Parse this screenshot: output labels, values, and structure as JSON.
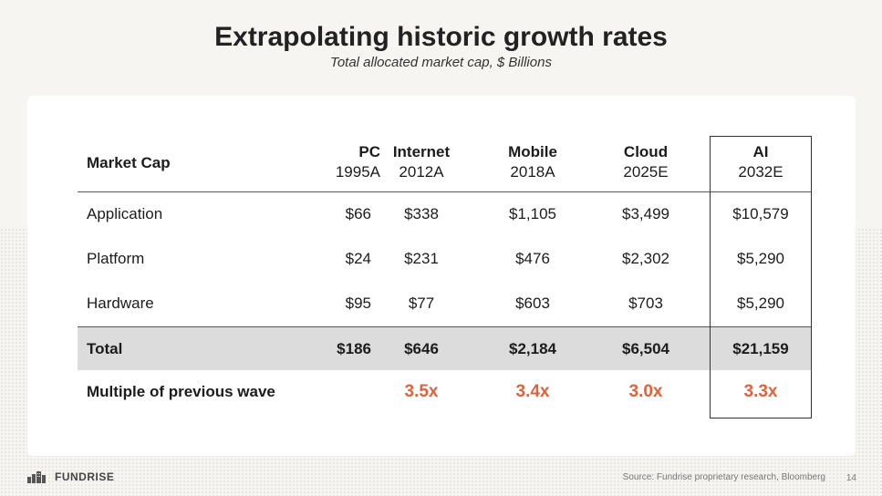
{
  "title": "Extrapolating historic growth rates",
  "subtitle": "Total allocated market cap, $ Billions",
  "table": {
    "header_label": "Market Cap",
    "columns": [
      {
        "name": "PC",
        "year": "1995A"
      },
      {
        "name": "Internet",
        "year": "2012A"
      },
      {
        "name": "Mobile",
        "year": "2018A"
      },
      {
        "name": "Cloud",
        "year": "2025E"
      },
      {
        "name": "AI",
        "year": "2032E"
      }
    ],
    "rows": [
      {
        "label": "Application",
        "values": [
          "$66",
          "$338",
          "$1,105",
          "$3,499",
          "$10,579"
        ]
      },
      {
        "label": "Platform",
        "values": [
          "$24",
          "$231",
          "$476",
          "$2,302",
          "$5,290"
        ]
      },
      {
        "label": "Hardware",
        "values": [
          "$95",
          "$77",
          "$603",
          "$703",
          "$5,290"
        ]
      }
    ],
    "total": {
      "label": "Total",
      "values": [
        "$186",
        "$646",
        "$2,184",
        "$6,504",
        "$21,159"
      ]
    },
    "multiple": {
      "label": "Multiple of previous wave",
      "values": [
        "",
        "3.5x",
        "3.4x",
        "3.0x",
        "3.3x"
      ]
    }
  },
  "colors": {
    "accent": "#e0623d",
    "total_bg": "#dcdcdc"
  },
  "footer": {
    "logo_text": "FUNDRISE",
    "logo_icon": "buildings-icon",
    "source": "Source: Fundrise proprietary research, Bloomberg",
    "page_number": "14"
  }
}
